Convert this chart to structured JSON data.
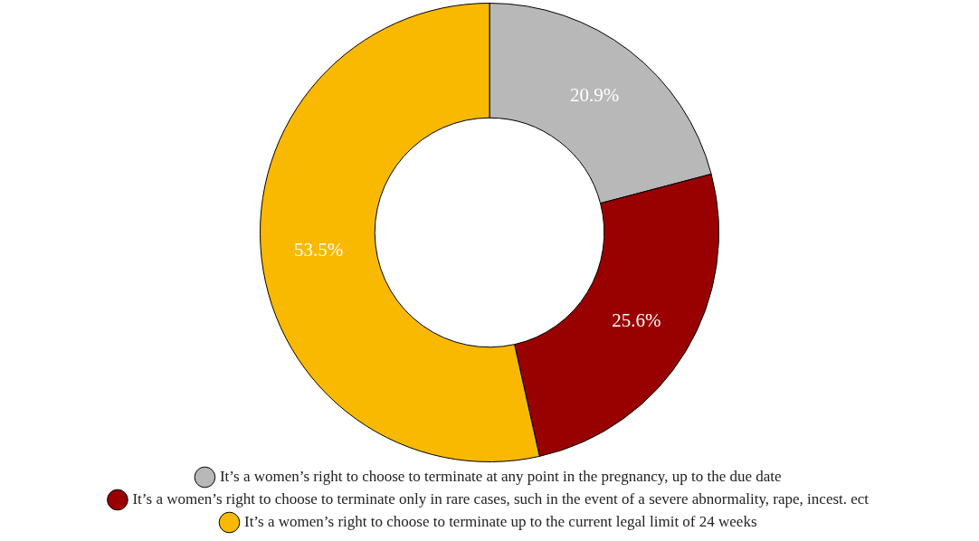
{
  "chart_data": {
    "type": "donut",
    "categories": [
      "It’s a women’s right to choose to terminate at any point in the pregnancy, up to the due date",
      "It’s a women’s right to choose to terminate only in rare cases, such in the event of a severe abnormality, rape, incest. ect",
      "It’s a women’s right to choose to terminate up to the current legal limit of 24 weeks"
    ],
    "values": [
      20.9,
      25.6,
      53.5
    ],
    "colors": [
      "#b8b8b8",
      "#990000",
      "#f9b900"
    ],
    "value_labels": [
      "20.9%",
      "25.6%",
      "53.5%"
    ],
    "legend": "bottom"
  }
}
